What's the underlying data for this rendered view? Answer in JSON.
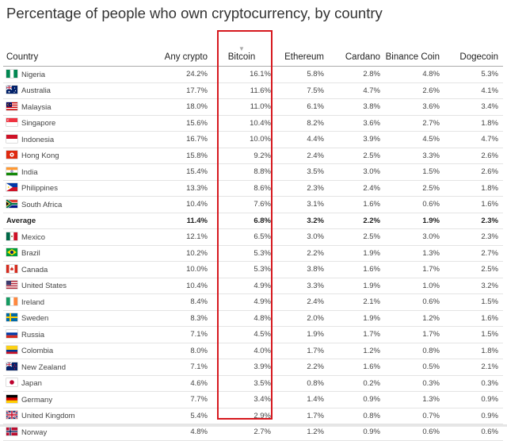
{
  "title": "Percentage of people who own cryptocurrency, by country",
  "chart_data": {
    "type": "table",
    "title": "Percentage of people who own cryptocurrency, by country",
    "columns": [
      "Country",
      "Any crypto",
      "Bitcoin",
      "Ethereum",
      "Cardano",
      "Binance Coin",
      "Dogecoin"
    ],
    "sorted_by": "Bitcoin",
    "highlighted_column": "Bitcoin",
    "rows": [
      {
        "country": "Nigeria",
        "flag": "nigeria-flag-icon",
        "values": [
          "24.2%",
          "16.1%",
          "5.8%",
          "2.8%",
          "4.8%",
          "5.3%"
        ]
      },
      {
        "country": "Australia",
        "flag": "australia-flag-icon",
        "values": [
          "17.7%",
          "11.6%",
          "7.5%",
          "4.7%",
          "2.6%",
          "4.1%"
        ]
      },
      {
        "country": "Malaysia",
        "flag": "malaysia-flag-icon",
        "values": [
          "18.0%",
          "11.0%",
          "6.1%",
          "3.8%",
          "3.6%",
          "3.4%"
        ]
      },
      {
        "country": "Singapore",
        "flag": "singapore-flag-icon",
        "values": [
          "15.6%",
          "10.4%",
          "8.2%",
          "3.6%",
          "2.7%",
          "1.8%"
        ]
      },
      {
        "country": "Indonesia",
        "flag": "indonesia-flag-icon",
        "values": [
          "16.7%",
          "10.0%",
          "4.4%",
          "3.9%",
          "4.5%",
          "4.7%"
        ]
      },
      {
        "country": "Hong Kong",
        "flag": "hong-kong-flag-icon",
        "values": [
          "15.8%",
          "9.2%",
          "2.4%",
          "2.5%",
          "3.3%",
          "2.6%"
        ]
      },
      {
        "country": "India",
        "flag": "india-flag-icon",
        "values": [
          "15.4%",
          "8.8%",
          "3.5%",
          "3.0%",
          "1.5%",
          "2.6%"
        ]
      },
      {
        "country": "Philippines",
        "flag": "philippines-flag-icon",
        "values": [
          "13.3%",
          "8.6%",
          "2.3%",
          "2.4%",
          "2.5%",
          "1.8%"
        ]
      },
      {
        "country": "South Africa",
        "flag": "south-africa-flag-icon",
        "values": [
          "10.4%",
          "7.6%",
          "3.1%",
          "1.6%",
          "0.6%",
          "1.6%"
        ]
      },
      {
        "country": "Average",
        "flag": "",
        "average": true,
        "values": [
          "11.4%",
          "6.8%",
          "3.2%",
          "2.2%",
          "1.9%",
          "2.3%"
        ]
      },
      {
        "country": "Mexico",
        "flag": "mexico-flag-icon",
        "values": [
          "12.1%",
          "6.5%",
          "3.0%",
          "2.5%",
          "3.0%",
          "2.3%"
        ]
      },
      {
        "country": "Brazil",
        "flag": "brazil-flag-icon",
        "values": [
          "10.2%",
          "5.3%",
          "2.2%",
          "1.9%",
          "1.3%",
          "2.7%"
        ]
      },
      {
        "country": "Canada",
        "flag": "canada-flag-icon",
        "values": [
          "10.0%",
          "5.3%",
          "3.8%",
          "1.6%",
          "1.7%",
          "2.5%"
        ]
      },
      {
        "country": "United States",
        "flag": "united-states-flag-icon",
        "values": [
          "10.4%",
          "4.9%",
          "3.3%",
          "1.9%",
          "1.0%",
          "3.2%"
        ]
      },
      {
        "country": "Ireland",
        "flag": "ireland-flag-icon",
        "values": [
          "8.4%",
          "4.9%",
          "2.4%",
          "2.1%",
          "0.6%",
          "1.5%"
        ]
      },
      {
        "country": "Sweden",
        "flag": "sweden-flag-icon",
        "values": [
          "8.3%",
          "4.8%",
          "2.0%",
          "1.9%",
          "1.2%",
          "1.6%"
        ]
      },
      {
        "country": "Russia",
        "flag": "russia-flag-icon",
        "values": [
          "7.1%",
          "4.5%",
          "1.9%",
          "1.7%",
          "1.7%",
          "1.5%"
        ]
      },
      {
        "country": "Colombia",
        "flag": "colombia-flag-icon",
        "values": [
          "8.0%",
          "4.0%",
          "1.7%",
          "1.2%",
          "0.8%",
          "1.8%"
        ]
      },
      {
        "country": "New Zealand",
        "flag": "new-zealand-flag-icon",
        "values": [
          "7.1%",
          "3.9%",
          "2.2%",
          "1.6%",
          "0.5%",
          "2.1%"
        ]
      },
      {
        "country": "Japan",
        "flag": "japan-flag-icon",
        "values": [
          "4.6%",
          "3.5%",
          "0.8%",
          "0.2%",
          "0.3%",
          "0.3%"
        ]
      },
      {
        "country": "Germany",
        "flag": "germany-flag-icon",
        "values": [
          "7.7%",
          "3.4%",
          "1.4%",
          "0.9%",
          "1.3%",
          "0.9%"
        ]
      },
      {
        "country": "United Kingdom",
        "flag": "united-kingdom-flag-icon",
        "values": [
          "5.4%",
          "2.9%",
          "1.7%",
          "0.8%",
          "0.7%",
          "0.9%"
        ]
      },
      {
        "country": "Norway",
        "flag": "norway-flag-icon",
        "values": [
          "4.8%",
          "2.7%",
          "1.2%",
          "0.9%",
          "0.6%",
          "0.6%"
        ]
      }
    ]
  },
  "colors": {
    "highlight_border": "#d6181e"
  }
}
